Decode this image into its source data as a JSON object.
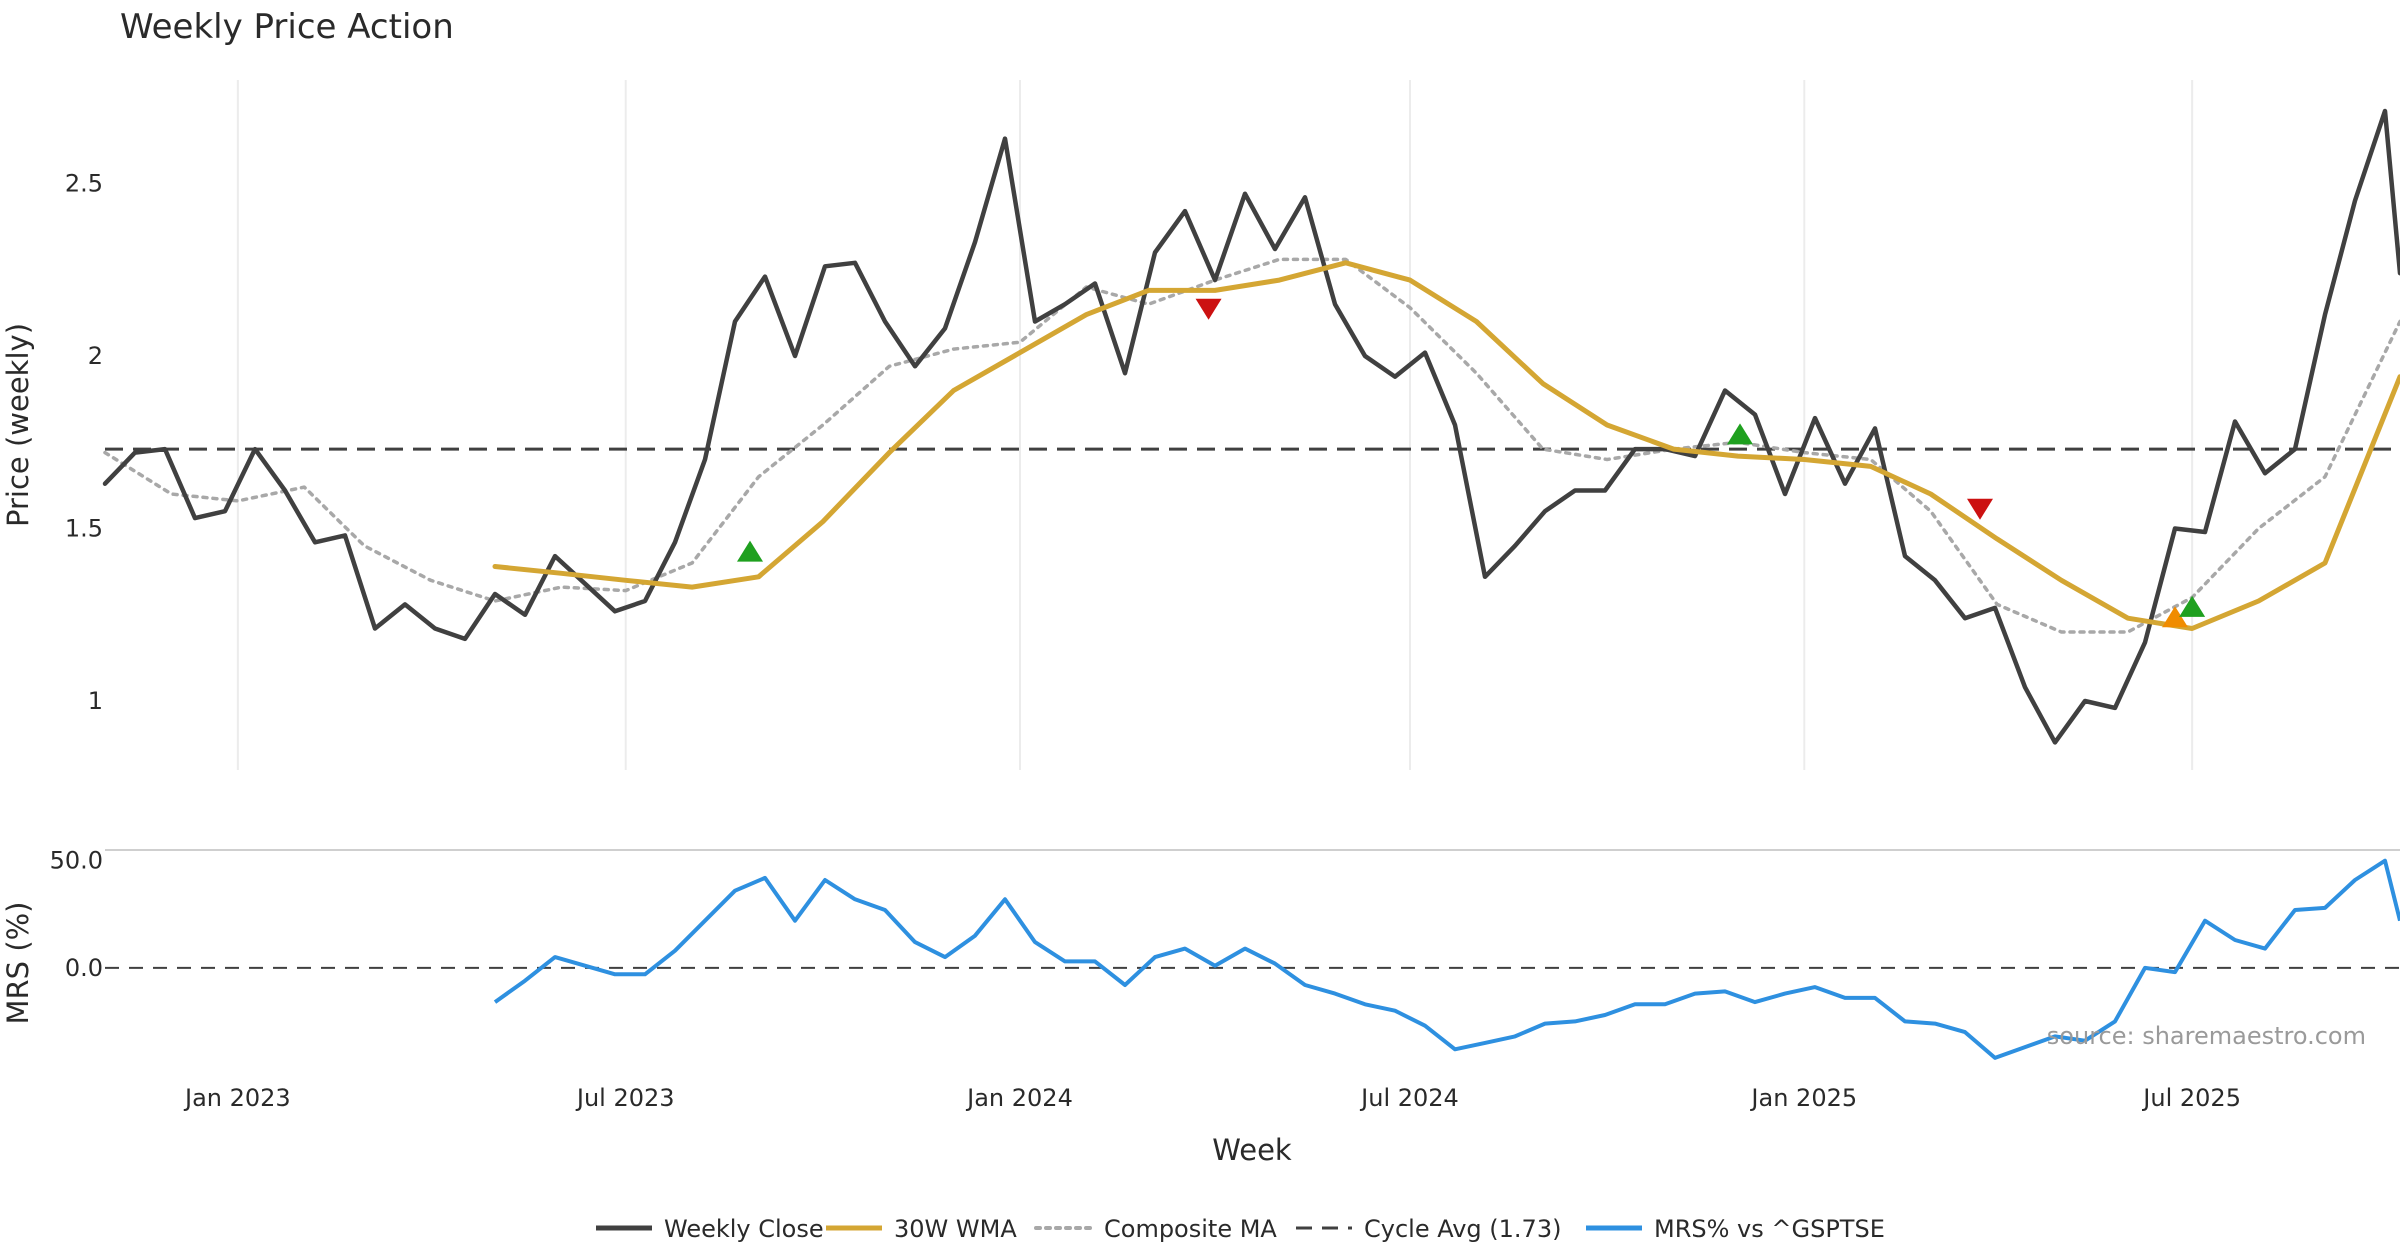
{
  "chart_data": [
    {
      "type": "line",
      "title": "Weekly Price Action",
      "ylabel": "Price (weekly)",
      "ylim": [
        0.8,
        2.8
      ],
      "yticks": [
        1,
        1.5,
        2,
        2.5
      ],
      "ytick_labels": [
        "1",
        "1.5",
        "2",
        "2.5"
      ],
      "x_start": "2022-10-31",
      "x_end": "2025-10-06",
      "cycle_avg": 1.73,
      "series": [
        {
          "name": "Weekly Close",
          "color": "#404040",
          "style": "solid",
          "x": [
            "2022-10-31",
            "2022-11-14",
            "2022-11-28",
            "2022-12-12",
            "2022-12-26",
            "2023-01-09",
            "2023-01-23",
            "2023-02-06",
            "2023-02-20",
            "2023-03-06",
            "2023-03-20",
            "2023-04-03",
            "2023-04-17",
            "2023-05-01",
            "2023-05-15",
            "2023-05-29",
            "2023-06-12",
            "2023-06-26",
            "2023-07-10",
            "2023-07-24",
            "2023-08-07",
            "2023-08-21",
            "2023-09-04",
            "2023-09-18",
            "2023-10-02",
            "2023-10-16",
            "2023-10-30",
            "2023-11-13",
            "2023-11-27",
            "2023-12-11",
            "2023-12-25",
            "2024-01-08",
            "2024-01-22",
            "2024-02-05",
            "2024-02-19",
            "2024-03-04",
            "2024-03-18",
            "2024-04-01",
            "2024-04-15",
            "2024-04-29",
            "2024-05-13",
            "2024-05-27",
            "2024-06-10",
            "2024-06-24",
            "2024-07-08",
            "2024-07-22",
            "2024-08-05",
            "2024-08-19",
            "2024-09-02",
            "2024-09-16",
            "2024-09-30",
            "2024-10-14",
            "2024-10-28",
            "2024-11-11",
            "2024-11-25",
            "2024-12-09",
            "2024-12-23",
            "2025-01-06",
            "2025-01-20",
            "2025-02-03",
            "2025-02-17",
            "2025-03-03",
            "2025-03-17",
            "2025-03-31",
            "2025-04-14",
            "2025-04-28",
            "2025-05-12",
            "2025-05-26",
            "2025-06-09",
            "2025-06-23",
            "2025-07-07",
            "2025-07-21",
            "2025-08-04",
            "2025-08-18",
            "2025-09-01",
            "2025-09-15",
            "2025-09-29",
            "2025-10-06"
          ],
          "values": [
            1.63,
            1.72,
            1.73,
            1.53,
            1.55,
            1.73,
            1.61,
            1.46,
            1.48,
            1.21,
            1.28,
            1.21,
            1.18,
            1.31,
            1.25,
            1.42,
            1.34,
            1.26,
            1.29,
            1.46,
            1.7,
            2.1,
            2.23,
            2.0,
            2.26,
            2.27,
            2.1,
            1.97,
            2.08,
            2.33,
            2.63,
            2.1,
            2.15,
            2.21,
            1.95,
            2.3,
            2.42,
            2.22,
            2.47,
            2.31,
            2.46,
            2.15,
            2.0,
            1.94,
            2.01,
            1.8,
            1.36,
            1.45,
            1.55,
            1.61,
            1.61,
            1.73,
            1.73,
            1.71,
            1.9,
            1.83,
            1.6,
            1.82,
            1.63,
            1.79,
            1.42,
            1.35,
            1.24,
            1.27,
            1.04,
            0.88,
            1.0,
            0.98,
            1.17,
            1.5,
            1.49,
            1.81,
            1.66,
            1.73,
            2.12,
            2.45,
            2.71,
            2.24
          ]
        },
        {
          "name": "30W WMA",
          "color": "#d4a633",
          "style": "solid",
          "x": [
            "2023-05-01",
            "2023-06-01",
            "2023-07-01",
            "2023-08-01",
            "2023-09-01",
            "2023-10-01",
            "2023-11-01",
            "2023-12-01",
            "2024-01-01",
            "2024-02-01",
            "2024-03-01",
            "2024-04-01",
            "2024-05-01",
            "2024-06-01",
            "2024-07-01",
            "2024-08-01",
            "2024-09-01",
            "2024-10-01",
            "2024-11-01",
            "2024-12-01",
            "2025-01-01",
            "2025-02-01",
            "2025-03-01",
            "2025-04-01",
            "2025-05-01",
            "2025-06-01",
            "2025-07-01",
            "2025-08-01",
            "2025-09-01",
            "2025-10-06"
          ],
          "values": [
            1.39,
            1.37,
            1.35,
            1.33,
            1.36,
            1.52,
            1.72,
            1.9,
            2.01,
            2.12,
            2.19,
            2.19,
            2.22,
            2.27,
            2.22,
            2.1,
            1.92,
            1.8,
            1.73,
            1.71,
            1.7,
            1.68,
            1.6,
            1.47,
            1.35,
            1.24,
            1.21,
            1.29,
            1.4,
            1.94
          ]
        },
        {
          "name": "Composite MA",
          "color": "#a8a8a8",
          "style": "dotted",
          "x": [
            "2022-10-31",
            "2022-12-01",
            "2023-01-01",
            "2023-02-01",
            "2023-03-01",
            "2023-04-01",
            "2023-05-01",
            "2023-06-01",
            "2023-07-01",
            "2023-08-01",
            "2023-09-01",
            "2023-10-01",
            "2023-11-01",
            "2023-12-01",
            "2024-01-01",
            "2024-02-01",
            "2024-03-01",
            "2024-04-01",
            "2024-05-01",
            "2024-06-01",
            "2024-07-01",
            "2024-08-01",
            "2024-09-01",
            "2024-10-01",
            "2024-11-01",
            "2024-12-01",
            "2025-01-01",
            "2025-02-01",
            "2025-03-01",
            "2025-04-01",
            "2025-05-01",
            "2025-06-01",
            "2025-07-01",
            "2025-08-01",
            "2025-09-01",
            "2025-10-06"
          ],
          "values": [
            1.72,
            1.6,
            1.58,
            1.62,
            1.45,
            1.35,
            1.29,
            1.33,
            1.32,
            1.4,
            1.65,
            1.8,
            1.97,
            2.02,
            2.04,
            2.2,
            2.15,
            2.22,
            2.28,
            2.28,
            2.14,
            1.95,
            1.73,
            1.7,
            1.73,
            1.75,
            1.72,
            1.7,
            1.55,
            1.28,
            1.2,
            1.2,
            1.3,
            1.5,
            1.65,
            2.1
          ]
        }
      ],
      "signals": [
        {
          "date": "2023-08-28",
          "value": 1.43,
          "direction": "up",
          "color": "#1fa01f"
        },
        {
          "date": "2024-03-29",
          "value": 2.14,
          "direction": "down",
          "color": "#cc1111"
        },
        {
          "date": "2024-12-02",
          "value": 1.77,
          "direction": "up",
          "color": "#1fa01f"
        },
        {
          "date": "2025-03-24",
          "value": 1.56,
          "direction": "down",
          "color": "#cc1111"
        },
        {
          "date": "2025-06-23",
          "value": 1.24,
          "direction": "up",
          "color": "#f08c00"
        },
        {
          "date": "2025-07-01",
          "value": 1.27,
          "direction": "up",
          "color": "#1fa01f"
        }
      ]
    },
    {
      "type": "line",
      "xlabel": "Week",
      "ylabel": "MRS (%)",
      "ylim": [
        -50,
        55
      ],
      "yticks": [
        0,
        50
      ],
      "ytick_labels": [
        "0.0",
        "50.0"
      ],
      "zero_line": 0,
      "x_start": "2022-10-31",
      "x_end": "2025-10-06",
      "xticks": [
        {
          "date": "2023-01-01",
          "label": "Jan 2023"
        },
        {
          "date": "2023-07-01",
          "label": "Jul 2023"
        },
        {
          "date": "2024-01-01",
          "label": "Jan 2024"
        },
        {
          "date": "2024-07-01",
          "label": "Jul 2024"
        },
        {
          "date": "2025-01-01",
          "label": "Jan 2025"
        },
        {
          "date": "2025-07-01",
          "label": "Jul 2025"
        }
      ],
      "series": [
        {
          "name": "MRS% vs ^GSPTSE",
          "color": "#2e90e0",
          "style": "solid",
          "x": [
            "2023-05-01",
            "2023-05-15",
            "2023-05-29",
            "2023-06-12",
            "2023-06-26",
            "2023-07-10",
            "2023-07-24",
            "2023-08-07",
            "2023-08-21",
            "2023-09-04",
            "2023-09-18",
            "2023-10-02",
            "2023-10-16",
            "2023-10-30",
            "2023-11-13",
            "2023-11-27",
            "2023-12-11",
            "2023-12-25",
            "2024-01-08",
            "2024-01-22",
            "2024-02-05",
            "2024-02-19",
            "2024-03-04",
            "2024-03-18",
            "2024-04-01",
            "2024-04-15",
            "2024-04-29",
            "2024-05-13",
            "2024-05-27",
            "2024-06-10",
            "2024-06-24",
            "2024-07-08",
            "2024-07-22",
            "2024-08-05",
            "2024-08-19",
            "2024-09-02",
            "2024-09-16",
            "2024-09-30",
            "2024-10-14",
            "2024-10-28",
            "2024-11-11",
            "2024-11-25",
            "2024-12-09",
            "2024-12-23",
            "2025-01-06",
            "2025-01-20",
            "2025-02-03",
            "2025-02-17",
            "2025-03-03",
            "2025-03-17",
            "2025-03-31",
            "2025-04-14",
            "2025-04-28",
            "2025-05-12",
            "2025-05-26",
            "2025-06-09",
            "2025-06-23",
            "2025-07-07",
            "2025-07-21",
            "2025-08-04",
            "2025-08-18",
            "2025-09-01",
            "2025-09-15",
            "2025-09-29",
            "2025-10-06"
          ],
          "values": [
            -16,
            -6,
            5,
            1,
            -3,
            -3,
            8,
            22,
            36,
            42,
            22,
            41,
            32,
            27,
            12,
            5,
            15,
            32,
            12,
            3,
            3,
            -8,
            5,
            9,
            1,
            9,
            2,
            -8,
            -12,
            -17,
            -20,
            -27,
            -38,
            -35,
            -32,
            -26,
            -25,
            -22,
            -17,
            -17,
            -12,
            -11,
            -16,
            -12,
            -9,
            -14,
            -14,
            -25,
            -26,
            -30,
            -42,
            -37,
            -32,
            -34,
            -25,
            0,
            -2,
            22,
            13,
            9,
            27,
            28,
            41,
            50,
            22
          ]
        }
      ]
    }
  ],
  "legend": [
    {
      "label": "Weekly Close",
      "color": "#404040",
      "style": "solid"
    },
    {
      "label": "30W WMA",
      "color": "#d4a633",
      "style": "solid"
    },
    {
      "label": "Composite MA",
      "color": "#a8a8a8",
      "style": "dotted"
    },
    {
      "label": "Cycle Avg (1.73)",
      "color": "#404040",
      "style": "dashed"
    },
    {
      "label": "MRS% vs ^GSPTSE",
      "color": "#2e90e0",
      "style": "solid"
    }
  ],
  "source_note": "source: sharemaestro.com"
}
